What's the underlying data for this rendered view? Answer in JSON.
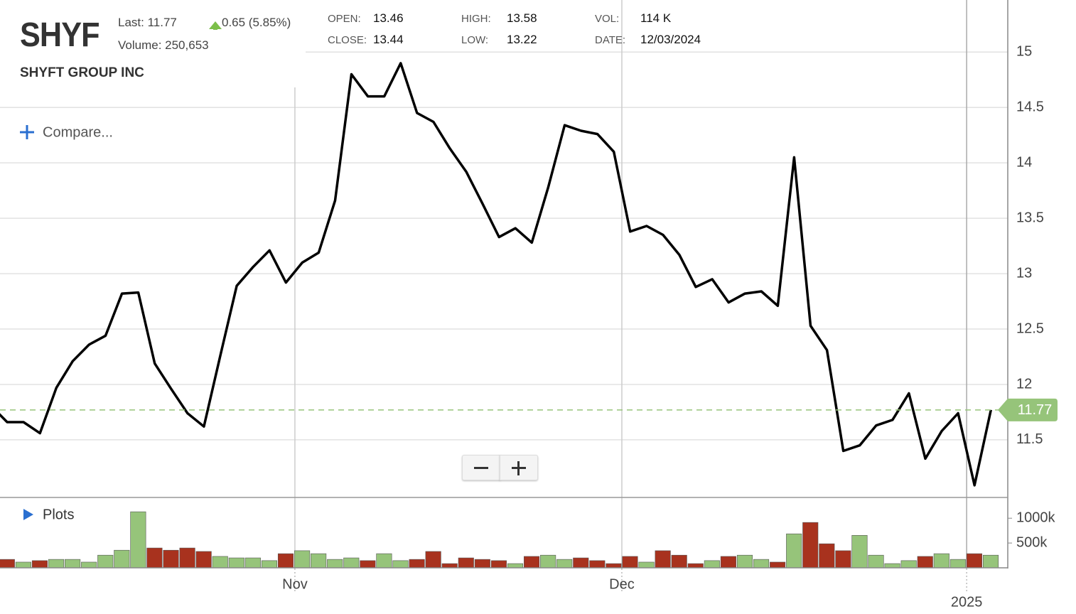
{
  "quote": {
    "symbol": "SHYF",
    "last_label": "Last:",
    "change": "0.65 (5.85%)",
    "volume_text": "Volume: 250,653",
    "company": "SHYFT GROUP INC",
    "open_label": "OPEN:",
    "open": "13.46",
    "close_label": "CLOSE:",
    "close": "13.44",
    "high_label": "HIGH:",
    "high": "13.58",
    "low_label": "LOW:",
    "low": "13.22",
    "vol_label": "VOL:",
    "vol": "114 K",
    "date_label": "DATE:",
    "date": "12/03/2024",
    "compare": "Compare...",
    "plots": "Plots"
  },
  "chart_data": [
    {
      "type": "line",
      "color": "#000000",
      "categories": [
        null,
        null,
        null,
        null,
        null,
        null,
        null,
        null,
        null,
        null,
        null,
        null,
        null,
        null,
        null,
        null,
        null,
        null,
        null,
        null,
        null,
        null,
        null,
        null,
        null,
        null,
        null,
        null,
        null,
        null,
        null,
        null,
        null,
        null,
        null,
        null,
        null,
        null,
        null,
        null,
        null,
        null,
        null,
        null,
        null,
        null,
        null,
        null,
        null,
        null,
        null,
        null,
        null,
        null,
        null,
        null,
        null,
        null,
        null,
        null,
        null,
        null
      ],
      "values": [
        11.81,
        11.66,
        11.66,
        11.56,
        11.97,
        12.21,
        12.36,
        12.44,
        12.82,
        12.83,
        12.19,
        11.96,
        11.74,
        11.62,
        12.26,
        12.89,
        13.06,
        13.21,
        12.92,
        13.1,
        13.19,
        13.66,
        14.8,
        14.6,
        14.6,
        14.9,
        14.45,
        14.37,
        14.13,
        13.92,
        13.63,
        13.33,
        13.41,
        13.28,
        13.78,
        14.34,
        14.29,
        14.26,
        14.1,
        13.38,
        13.43,
        13.35,
        13.17,
        12.88,
        12.95,
        12.74,
        12.82,
        12.84,
        12.71,
        14.05,
        12.53,
        12.31,
        11.4,
        11.45,
        11.63,
        11.68,
        11.92,
        11.33,
        11.58,
        11.74,
        11.09,
        11.77
      ],
      "ylim": [
        10.98,
        15.47
      ],
      "yticks": [
        11.5,
        12,
        12.5,
        13,
        13.5,
        14,
        14.5,
        15
      ],
      "xticks": [
        {
          "value": 18.55,
          "label": "Nov"
        },
        {
          "value": 38.49,
          "label": "Dec"
        },
        {
          "value": 59.52,
          "label": "2025"
        }
      ],
      "grid": true,
      "last_value": 11.77,
      "last_color": "#96c47a"
    },
    {
      "type": "bar",
      "values": [
        null,
        170000,
        115000,
        145000,
        170000,
        170000,
        115000,
        255000,
        355000,
        1130000,
        400000,
        355000,
        400000,
        330000,
        230000,
        200000,
        200000,
        145000,
        285000,
        345000,
        285000,
        170000,
        200000,
        145000,
        285000,
        145000,
        170000,
        330000,
        85000,
        200000,
        170000,
        145000,
        85000,
        230000,
        255000,
        170000,
        200000,
        145000,
        85000,
        230000,
        115000,
        345000,
        255000,
        85000,
        145000,
        230000,
        255000,
        170000,
        115000,
        685000,
        915000,
        485000,
        345000,
        655000,
        255000,
        85000,
        145000,
        230000,
        285000,
        170000,
        285000,
        255000
      ],
      "bar_colors": [
        null,
        "#a8321e",
        "#96c47a",
        "#a8321e",
        "#96c47a",
        "#96c47a",
        "#96c47a",
        "#96c47a",
        "#96c47a",
        "#96c47a",
        "#a8321e",
        "#a8321e",
        "#a8321e",
        "#a8321e",
        "#96c47a",
        "#96c47a",
        "#96c47a",
        "#96c47a",
        "#a8321e",
        "#96c47a",
        "#96c47a",
        "#96c47a",
        "#96c47a",
        "#a8321e",
        "#96c47a",
        "#96c47a",
        "#a8321e",
        "#a8321e",
        "#a8321e",
        "#a8321e",
        "#a8321e",
        "#a8321e",
        "#96c47a",
        "#a8321e",
        "#96c47a",
        "#96c47a",
        "#a8321e",
        "#a8321e",
        "#a8321e",
        "#a8321e",
        "#96c47a",
        "#a8321e",
        "#a8321e",
        "#a8321e",
        "#96c47a",
        "#a8321e",
        "#96c47a",
        "#96c47a",
        "#a8321e",
        "#96c47a",
        "#a8321e",
        "#a8321e",
        "#a8321e",
        "#96c47a",
        "#96c47a",
        "#96c47a",
        "#96c47a",
        "#a8321e",
        "#96c47a",
        "#96c47a",
        "#a8321e",
        "#96c47a"
      ],
      "ylim": [
        0,
        1390000
      ],
      "yticks": [
        {
          "value": 500000,
          "label": "500k"
        },
        {
          "value": 1000000,
          "label": "1000k"
        }
      ]
    }
  ]
}
